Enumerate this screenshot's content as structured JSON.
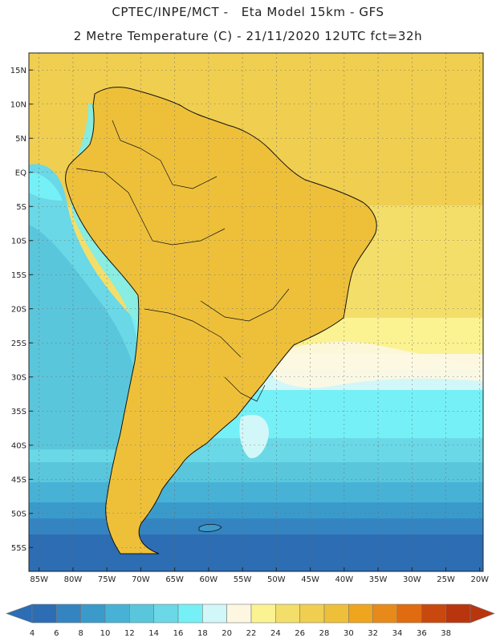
{
  "header": {
    "line1": "CPTEC/INPE/MCT -   Eta Model 15km - GFS",
    "line2": "2 Metre Temperature (C) - 21/11/2020 12UTC fct=32h"
  },
  "axes": {
    "lat_labels": [
      "15N",
      "10N",
      "5N",
      "EQ",
      "5S",
      "10S",
      "15S",
      "20S",
      "25S",
      "30S",
      "35S",
      "40S",
      "45S",
      "50S",
      "55S"
    ],
    "lat_values": [
      15,
      10,
      5,
      0,
      -5,
      -10,
      -15,
      -20,
      -25,
      -30,
      -35,
      -40,
      -45,
      -50,
      -55
    ],
    "lon_labels": [
      "85W",
      "80W",
      "75W",
      "70W",
      "65W",
      "60W",
      "55W",
      "50W",
      "45W",
      "40W",
      "35W",
      "30W",
      "25W",
      "20W"
    ],
    "lon_values": [
      -85,
      -80,
      -75,
      -70,
      -65,
      -60,
      -55,
      -50,
      -45,
      -40,
      -35,
      -30,
      -25,
      -20
    ],
    "lat_range": [
      -58.5,
      17.5
    ],
    "lon_range": [
      -86.5,
      -19.5
    ]
  },
  "colorbar": {
    "labels": [
      "4",
      "6",
      "8",
      "10",
      "12",
      "14",
      "16",
      "18",
      "20",
      "22",
      "24",
      "26",
      "28",
      "30",
      "32",
      "34",
      "36",
      "38"
    ],
    "colors": [
      "#2c6db3",
      "#3584c2",
      "#3a9bcb",
      "#48b1d6",
      "#5ac6dc",
      "#6ad8e6",
      "#75f0f6",
      "#d2f7f8",
      "#fdf7e2",
      "#fbf292",
      "#f4de6a",
      "#f0ce50",
      "#eec03a",
      "#efa51d",
      "#e88a1a",
      "#e16b10",
      "#c9480e",
      "#b9350e"
    ]
  },
  "legend_colors": {
    "ocean_cold": "#2c6db3",
    "ocean_warm": "#f0ce50",
    "land": "#e6a030",
    "hot_core": "#c9601a"
  }
}
